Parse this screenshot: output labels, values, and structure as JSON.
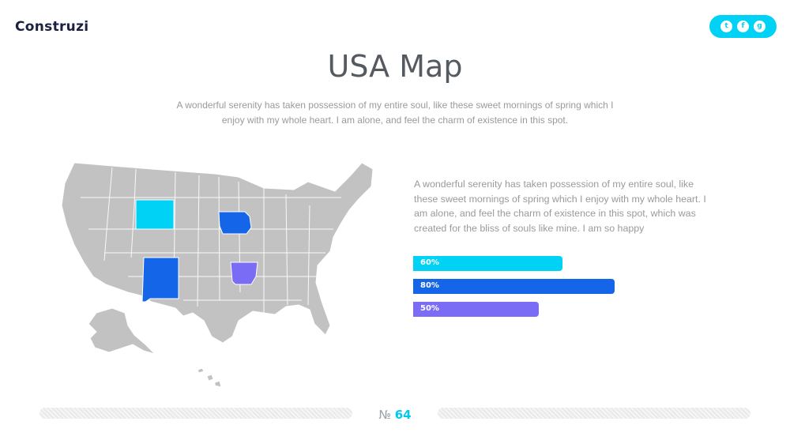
{
  "brand": {
    "logo_text": "Construzi"
  },
  "social": [
    {
      "icon": "twitter-icon",
      "glyph": "t"
    },
    {
      "icon": "facebook-icon",
      "glyph": "f"
    },
    {
      "icon": "google-plus-icon",
      "glyph": "g"
    }
  ],
  "header": {
    "title": "USA Map",
    "subtitle": "A wonderful serenity has taken possession of my entire soul, like these sweet mornings of spring which I enjoy with my whole heart. I am alone, and feel the charm of existence in this spot."
  },
  "map": {
    "base_color": "#c2c2c2",
    "highlights": [
      {
        "state": "Wyoming",
        "color": "#00d2f5"
      },
      {
        "state": "Iowa",
        "color": "#1565e8"
      },
      {
        "state": "New Mexico",
        "color": "#1565e8"
      },
      {
        "state": "Arkansas",
        "color": "#7b6cf6"
      }
    ]
  },
  "body": {
    "paragraph": "A wonderful serenity has taken possession of my entire soul, like these sweet mornings of spring which I enjoy with my whole heart. I am alone, and feel the charm of existence in this spot, which was created for the bliss of souls like mine. I am so happy"
  },
  "bars": [
    {
      "label": "60%",
      "value": 60,
      "color": "#00d2f5"
    },
    {
      "label": "80%",
      "value": 80,
      "color": "#1565e8"
    },
    {
      "label": "50%",
      "value": 50,
      "color": "#7b6cf6"
    }
  ],
  "footer": {
    "page_prefix": "№",
    "page_number": "64"
  }
}
